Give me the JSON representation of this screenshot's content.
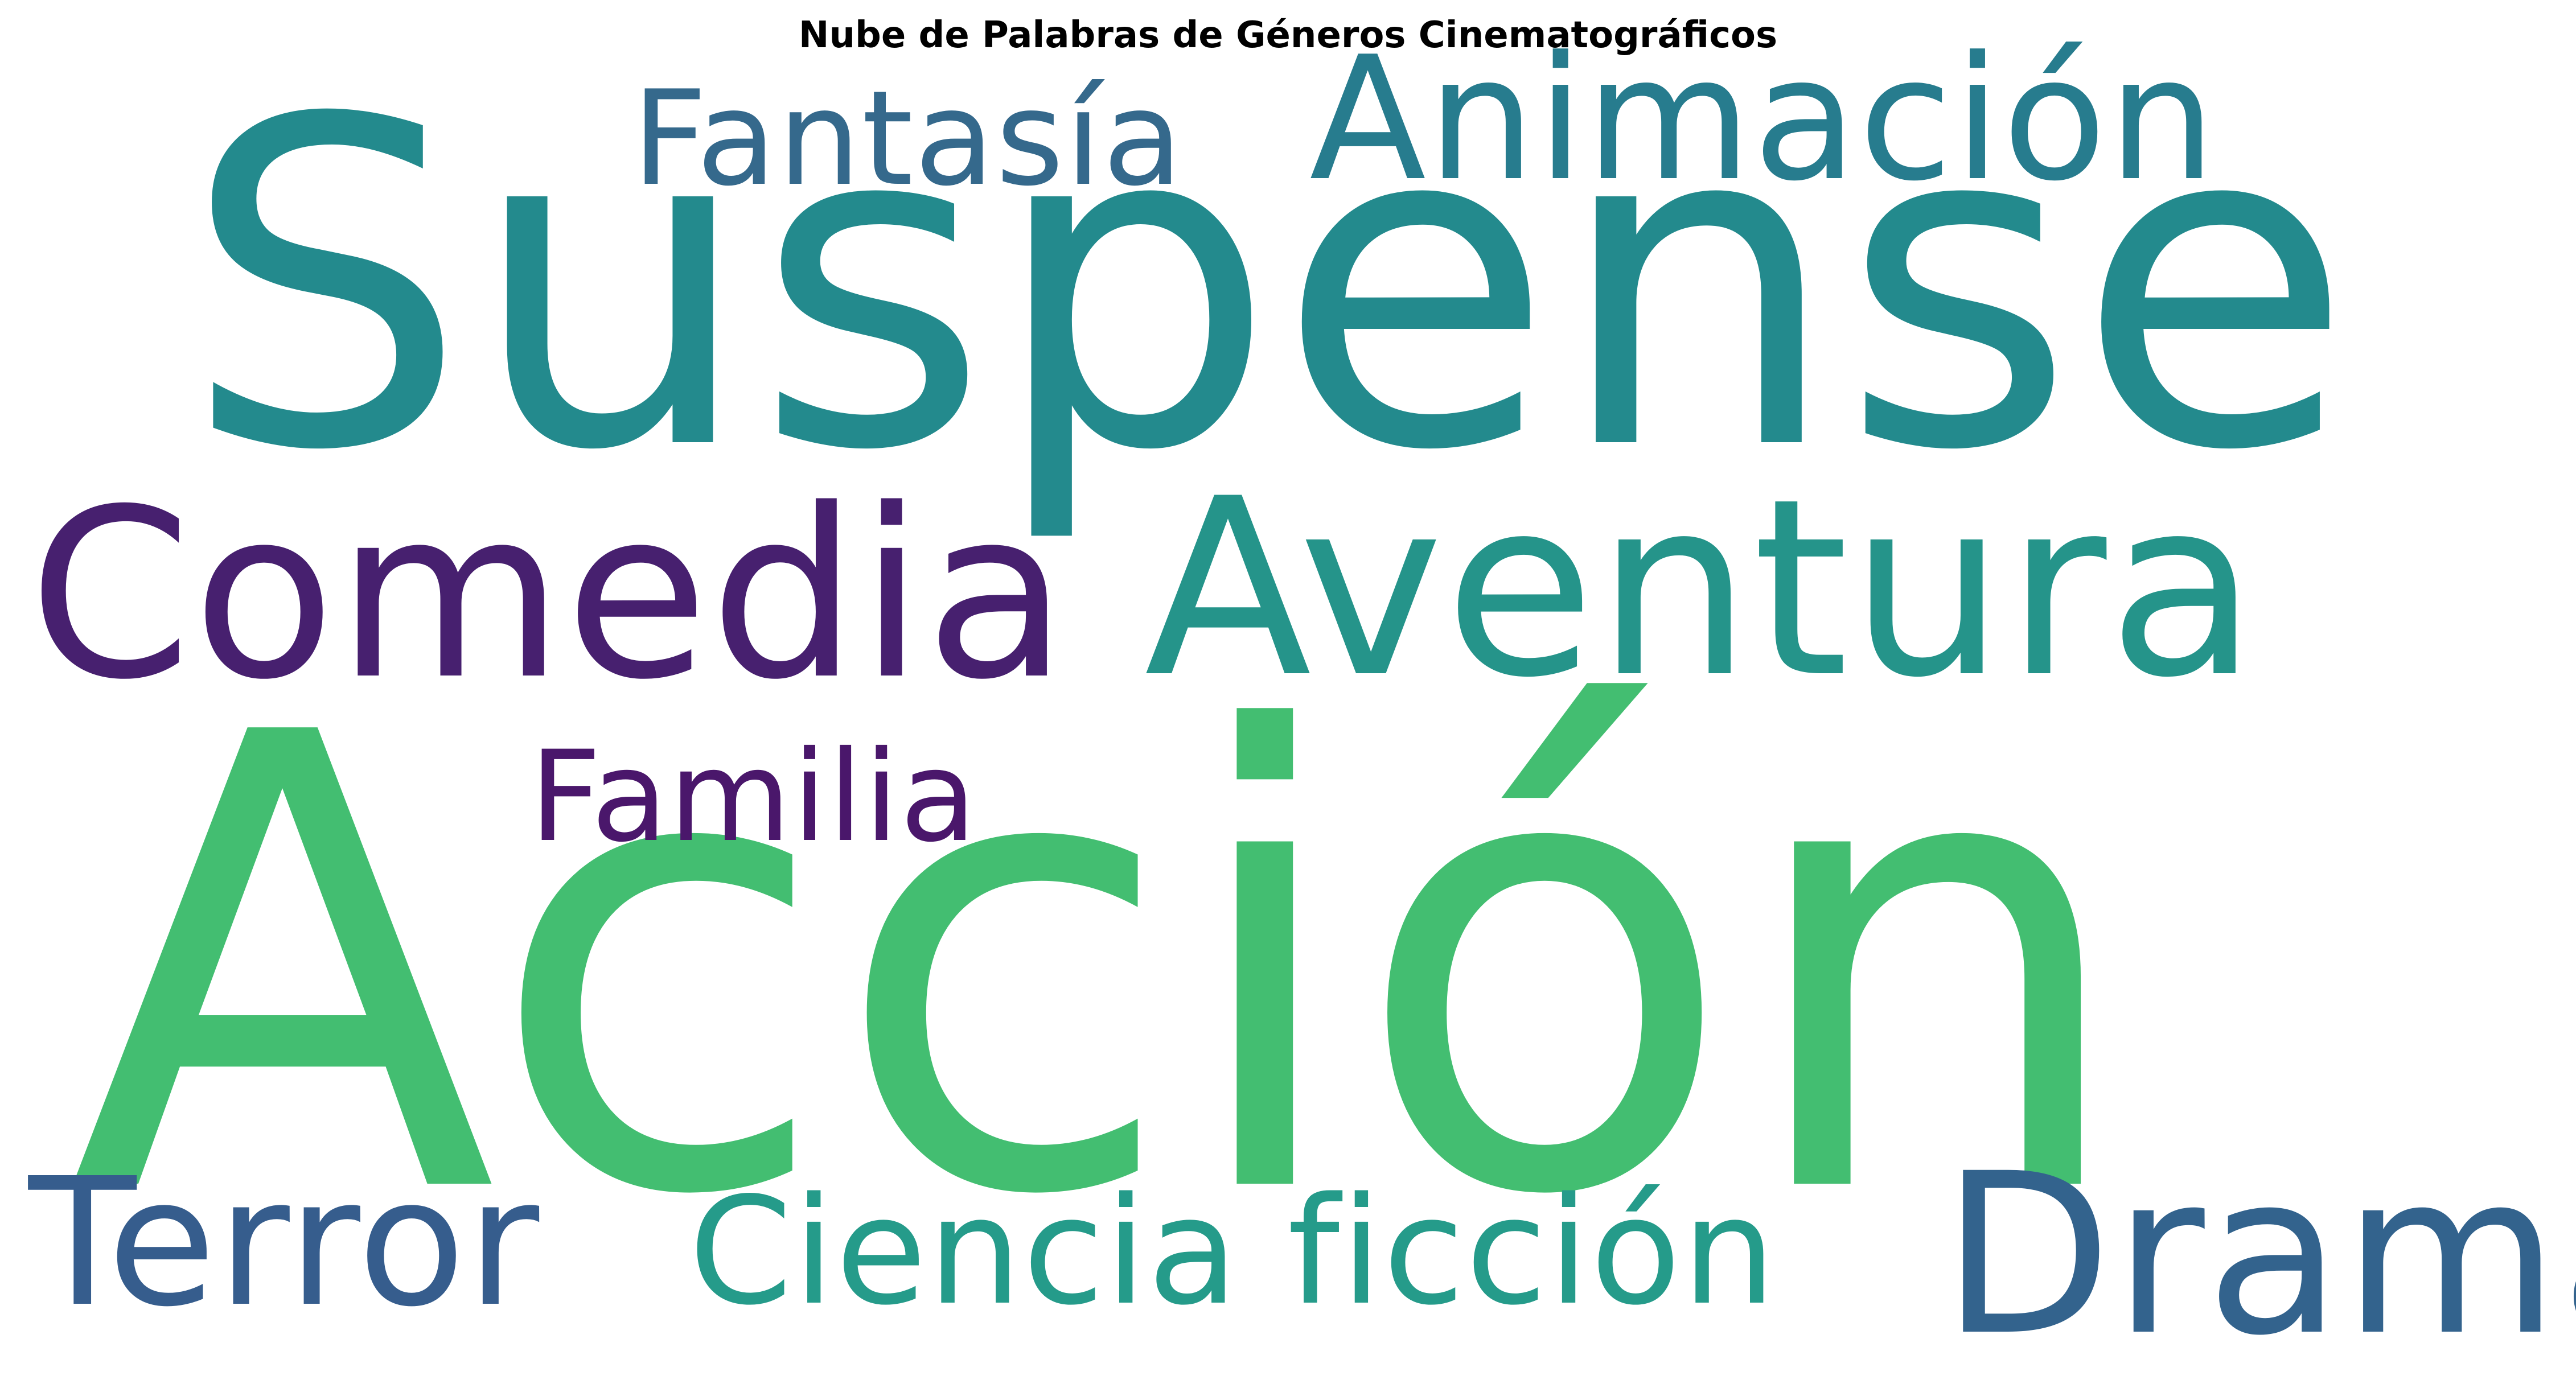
{
  "title": "Nube de Palabras de Géneros Cinematográficos",
  "words": [
    {
      "text": "Suspense",
      "color": "#238a8d"
    },
    {
      "text": "Acción",
      "color": "#43be71"
    },
    {
      "text": "Aventura",
      "color": "#25948a"
    },
    {
      "text": "Comedia",
      "color": "#47206f"
    },
    {
      "text": "Animación",
      "color": "#277c8e"
    },
    {
      "text": "Fantasía",
      "color": "#35698c"
    },
    {
      "text": "Familia",
      "color": "#4a176b"
    },
    {
      "text": "Terror",
      "color": "#365d8d"
    },
    {
      "text": "Ciencia ficción",
      "color": "#259b8a"
    },
    {
      "text": "Drama",
      "color": "#33638d"
    }
  ]
}
